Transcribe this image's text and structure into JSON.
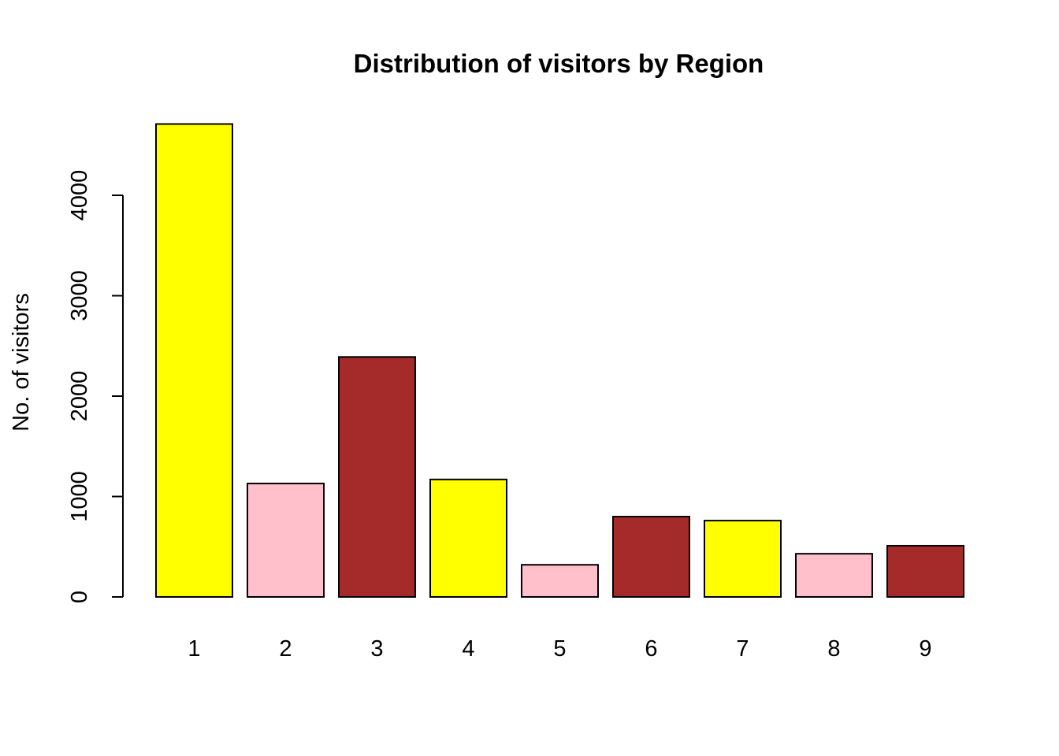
{
  "chart_data": {
    "type": "bar",
    "title": "Distribution of visitors by Region",
    "xlabel": "",
    "ylabel": "No. of visitors",
    "categories": [
      "1",
      "2",
      "3",
      "4",
      "5",
      "6",
      "7",
      "8",
      "9"
    ],
    "values": [
      4710,
      1130,
      2390,
      1170,
      320,
      800,
      760,
      430,
      510
    ],
    "colors": [
      "#FFFF00",
      "#FFC0CB",
      "#A52A2A",
      "#FFFF00",
      "#FFC0CB",
      "#A52A2A",
      "#FFFF00",
      "#FFC0CB",
      "#A52A2A"
    ],
    "yticks": [
      0,
      1000,
      2000,
      3000,
      4000
    ],
    "ylim": [
      0,
      4710
    ],
    "grid": false,
    "legend": "none"
  }
}
